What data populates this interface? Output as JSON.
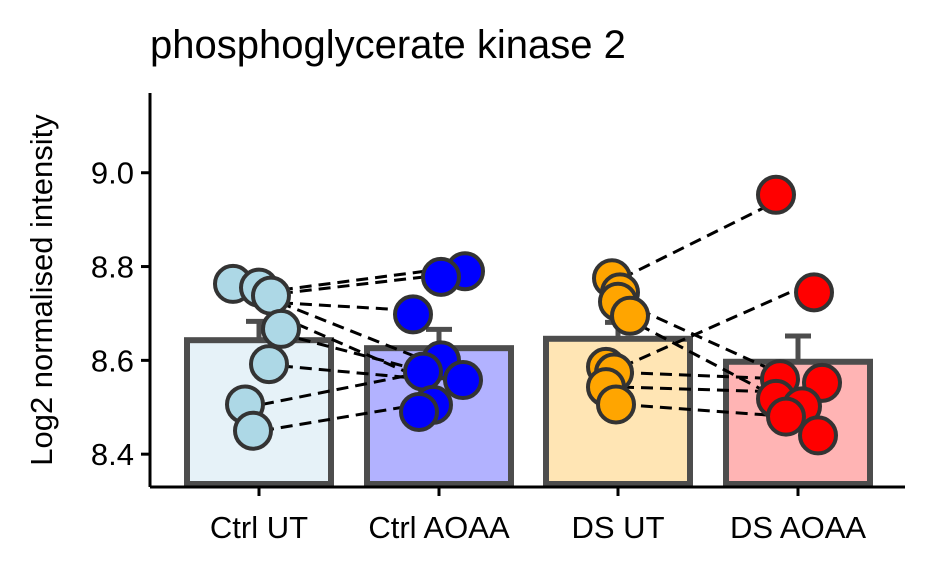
{
  "chart_data": {
    "type": "bar",
    "title": "phosphoglycerate kinase 2",
    "xlabel": "",
    "ylabel": "Log2 normalised intensity",
    "ylim": [
      8.33,
      9.17
    ],
    "yticks": [
      8.4,
      8.6,
      8.8,
      9.0
    ],
    "ytick_labels": [
      "8.4",
      "8.6",
      "8.8",
      "9.0"
    ],
    "grid": false,
    "legend": "none",
    "categories": [
      "Ctrl UT",
      "Ctrl AOAA",
      "DS UT",
      "DS AOAA"
    ],
    "values": [
      8.643,
      8.626,
      8.646,
      8.597
    ],
    "errors": [
      0.04,
      0.04,
      0.035,
      0.055
    ],
    "bar_fill_colors": [
      "#e6f2f8",
      "#b2b2ff",
      "#ffe5b4",
      "#ffb4b4"
    ],
    "point_colors": [
      "#add8e6",
      "#0000ff",
      "#ffa500",
      "#ff0000"
    ],
    "points": [
      [
        8.763,
        8.755,
        8.738,
        8.667,
        8.592,
        8.506,
        8.45
      ],
      [
        8.79,
        8.778,
        8.698,
        8.6,
        8.576,
        8.558,
        8.505,
        8.49
      ],
      [
        8.775,
        8.745,
        8.725,
        8.695,
        8.586,
        8.574,
        8.543,
        8.506
      ],
      [
        8.953,
        8.745,
        8.56,
        8.552,
        8.518,
        8.502,
        8.48,
        8.44
      ]
    ],
    "pairs_left": [
      [
        8.738,
        8.778
      ],
      [
        8.745,
        8.79
      ],
      [
        8.725,
        8.705
      ],
      [
        8.738,
        8.6
      ],
      [
        8.71,
        8.558
      ],
      [
        8.667,
        8.576
      ],
      [
        8.592,
        8.56
      ],
      [
        8.506,
        8.575
      ],
      [
        8.45,
        8.508
      ]
    ],
    "pairs_right": [
      [
        8.775,
        8.953
      ],
      [
        8.725,
        8.562
      ],
      [
        8.695,
        8.506
      ],
      [
        8.586,
        8.745
      ],
      [
        8.574,
        8.56
      ],
      [
        8.543,
        8.532
      ],
      [
        8.506,
        8.48
      ]
    ]
  }
}
